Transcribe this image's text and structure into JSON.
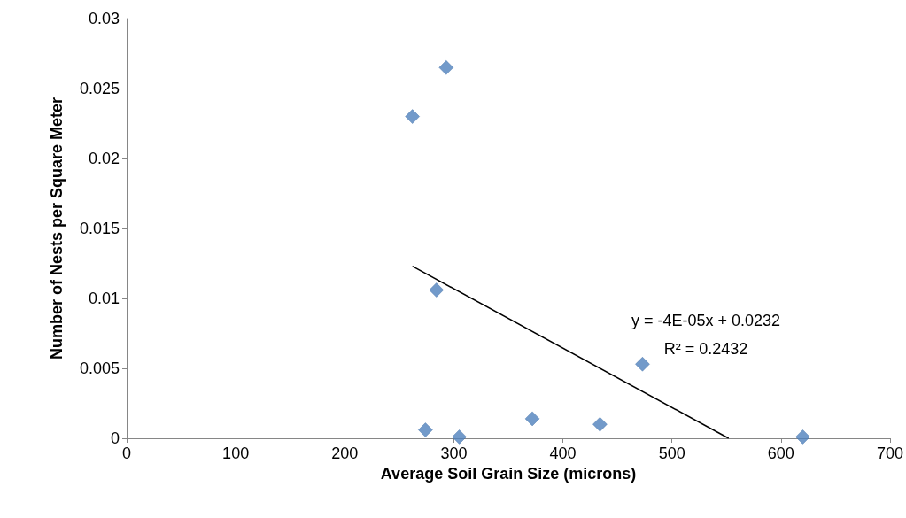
{
  "chart_data": {
    "type": "scatter",
    "xlabel": "Average Soil Grain Size (microns)",
    "ylabel": "Number of Nests per Square Meter",
    "series": [
      {
        "color": "#4f81bd",
        "marker": "diamond",
        "x": [
          262,
          293,
          284,
          274,
          305,
          372,
          434,
          473,
          620
        ],
        "values": [
          0.023,
          0.0265,
          0.0106,
          0.0006,
          0.0001,
          0.0014,
          0.001,
          0.0053,
          0.0001
        ]
      },
      {
        "type": "line",
        "color": "#000000",
        "marker": "none",
        "x": [
          262,
          552
        ],
        "values": [
          0.0123,
          0
        ]
      }
    ],
    "xlim": [
      0,
      700
    ],
    "xticks": [
      0,
      100,
      200,
      300,
      400,
      500,
      600,
      700
    ],
    "ylim": [
      0,
      0.03
    ],
    "yticks": [
      0,
      0.005,
      0.01,
      0.015,
      0.02,
      0.025,
      0.03
    ],
    "grid": false,
    "annotations": [
      "y = -4E-05x + 0.0232",
      "R² = 0.2432"
    ]
  }
}
